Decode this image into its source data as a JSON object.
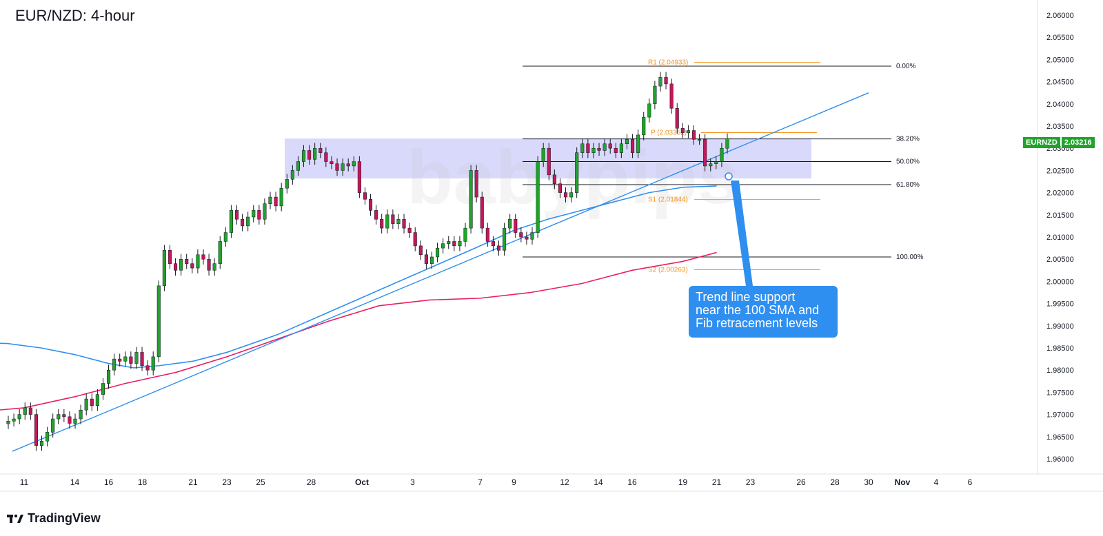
{
  "title": "EUR/NZD: 4-hour",
  "brand": "TradingView",
  "watermark": "babypips",
  "symbol_badge": {
    "symbol": "EURNZD",
    "price": "2.03216"
  },
  "callout": {
    "lines": [
      "Trend line support",
      "near the 100 SMA and",
      "Fib retracement levels"
    ]
  },
  "colors": {
    "up": "#21a32b",
    "down": "#c2185b",
    "sma100": "#2f8ff0",
    "sma200": "#e91e63",
    "trendline": "#2f8ff0",
    "zone": "#b9b9f7",
    "pivot": "#f7931a",
    "fib": "#131722"
  },
  "chart_data": {
    "type": "candlestick",
    "title": "EUR/NZD: 4-hour",
    "ylim": [
      1.955,
      2.063
    ],
    "y_ticks": [
      "2.06000",
      "2.05500",
      "2.05000",
      "2.04500",
      "2.04000",
      "2.03500",
      "2.03000",
      "2.02500",
      "2.02000",
      "2.01500",
      "2.01000",
      "2.00500",
      "2.00000",
      "1.99500",
      "1.99000",
      "1.98500",
      "1.98000",
      "1.97500",
      "1.97000",
      "1.96500",
      "1.96000"
    ],
    "x_ticks": [
      {
        "label": "11",
        "day": 11
      },
      {
        "label": "14",
        "day": 14
      },
      {
        "label": "16",
        "day": 16
      },
      {
        "label": "18",
        "day": 18
      },
      {
        "label": "21",
        "day": 21
      },
      {
        "label": "23",
        "day": 23
      },
      {
        "label": "25",
        "day": 25
      },
      {
        "label": "28",
        "day": 28
      },
      {
        "label": "Oct",
        "day": 31
      },
      {
        "label": "3",
        "day": 34
      },
      {
        "label": "7",
        "day": 38
      },
      {
        "label": "9",
        "day": 40
      },
      {
        "label": "12",
        "day": 43
      },
      {
        "label": "14",
        "day": 45
      },
      {
        "label": "16",
        "day": 47
      },
      {
        "label": "19",
        "day": 50
      },
      {
        "label": "21",
        "day": 52
      },
      {
        "label": "23",
        "day": 54
      },
      {
        "label": "26",
        "day": 57
      },
      {
        "label": "28",
        "day": 59
      },
      {
        "label": "30",
        "day": 61
      },
      {
        "label": "Nov",
        "day": 63
      },
      {
        "label": "4",
        "day": 65
      },
      {
        "label": "6",
        "day": 67
      }
    ],
    "closes": [
      1.9685,
      1.969,
      1.97,
      1.9715,
      1.97,
      1.963,
      1.964,
      1.966,
      1.969,
      1.97,
      1.9695,
      1.968,
      1.969,
      1.971,
      1.9735,
      1.972,
      1.9745,
      1.977,
      1.98,
      1.9825,
      1.982,
      1.983,
      1.9815,
      1.984,
      1.981,
      1.98,
      1.983,
      1.999,
      2.007,
      2.004,
      2.0025,
      2.005,
      2.004,
      2.003,
      2.006,
      2.005,
      2.0025,
      2.004,
      2.009,
      2.011,
      2.016,
      2.014,
      2.0125,
      2.0145,
      2.016,
      2.014,
      2.0175,
      2.019,
      2.017,
      2.021,
      2.023,
      2.025,
      2.027,
      2.0295,
      2.0275,
      2.03,
      2.029,
      2.027,
      2.0265,
      2.025,
      2.0265,
      2.026,
      2.027,
      2.02,
      2.0185,
      2.016,
      2.014,
      2.012,
      2.015,
      2.013,
      2.014,
      2.012,
      2.011,
      2.008,
      2.006,
      2.004,
      2.0055,
      2.0075,
      2.0085,
      2.009,
      2.008,
      2.009,
      2.012,
      2.025,
      2.019,
      2.012,
      2.009,
      2.008,
      2.007,
      2.012,
      2.014,
      2.011,
      2.01,
      2.0095,
      2.011,
      2.027,
      2.03,
      2.024,
      2.022,
      2.02,
      2.019,
      2.02,
      2.029,
      2.031,
      2.029,
      2.03,
      2.0295,
      2.031,
      2.03,
      2.029,
      2.031,
      2.032,
      2.029,
      2.033,
      2.037,
      2.04,
      2.044,
      2.046,
      2.0445,
      2.039,
      2.0345,
      2.0335,
      2.034,
      2.032,
      2.032,
      2.026,
      2.0265,
      2.027,
      2.03,
      2.03216
    ],
    "fib_levels": [
      {
        "label": "0.00%",
        "value": 2.0485
      },
      {
        "label": "38.20%",
        "value": 2.0321
      },
      {
        "label": "50.00%",
        "value": 2.027
      },
      {
        "label": "61.80%",
        "value": 2.0218
      },
      {
        "label": "100.00%",
        "value": 2.0055
      }
    ],
    "pivots": [
      {
        "label": "R1 (2.04933)",
        "value": 2.04933
      },
      {
        "label": "P (2.03352)",
        "value": 2.03352
      },
      {
        "label": "S1 (2.01844)",
        "value": 2.01844
      },
      {
        "label": "S2 (2.00263)",
        "value": 2.00263
      }
    ],
    "zone": {
      "from": 2.0232,
      "to": 2.0322
    },
    "sma100": [
      [
        8,
        1.9862
      ],
      [
        10,
        1.986
      ],
      [
        12,
        1.985
      ],
      [
        14,
        1.9835
      ],
      [
        16,
        1.9815
      ],
      [
        17.5,
        1.9805
      ],
      [
        19,
        1.981
      ],
      [
        21,
        1.982
      ],
      [
        23,
        1.984
      ],
      [
        26,
        1.988
      ],
      [
        29,
        1.993
      ],
      [
        32,
        1.998
      ],
      [
        35,
        2.003
      ],
      [
        38,
        2.008
      ],
      [
        40,
        2.0115
      ],
      [
        42,
        2.014
      ],
      [
        44,
        2.016
      ],
      [
        46,
        2.018
      ],
      [
        48,
        2.02
      ],
      [
        50,
        2.0212
      ],
      [
        52,
        2.0215
      ]
    ],
    "sma200": [
      [
        8,
        1.9705
      ],
      [
        11,
        1.9715
      ],
      [
        14,
        1.974
      ],
      [
        17,
        1.977
      ],
      [
        20,
        1.9795
      ],
      [
        23,
        1.983
      ],
      [
        26,
        1.987
      ],
      [
        29,
        1.991
      ],
      [
        32,
        1.9945
      ],
      [
        35,
        1.9958
      ],
      [
        38,
        1.9962
      ],
      [
        41,
        1.9975
      ],
      [
        44,
        1.9995
      ],
      [
        47,
        2.0025
      ],
      [
        50,
        2.0045
      ],
      [
        52,
        2.0065
      ]
    ],
    "trendline": [
      [
        10.3,
        1.9617
      ],
      [
        61,
        2.0425
      ]
    ]
  }
}
